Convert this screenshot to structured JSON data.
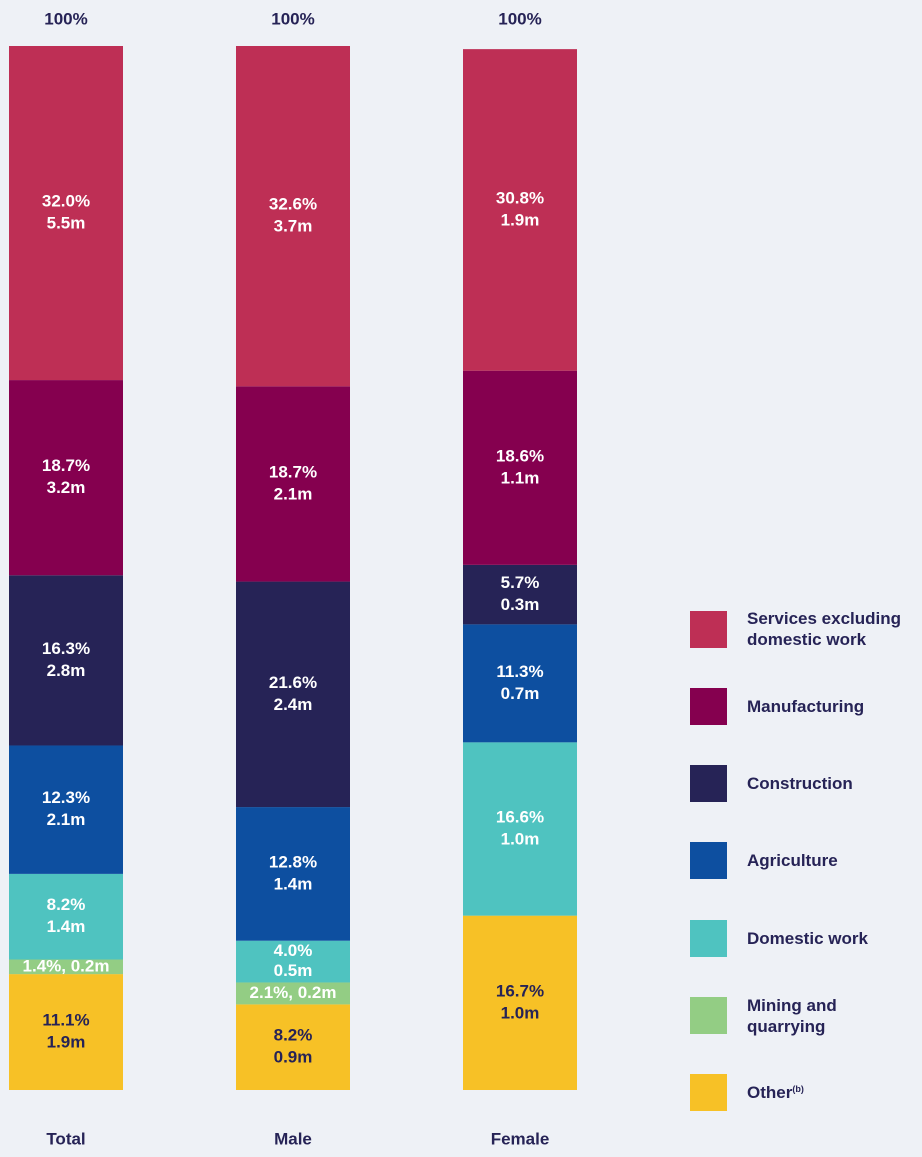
{
  "chart_data": {
    "type": "stacked-bar",
    "categories": [
      "Total",
      "Male",
      "Female"
    ],
    "totals": [
      100,
      100,
      100
    ],
    "total_labels": [
      "100%",
      "100%",
      "100%"
    ],
    "ylim": [
      0,
      100
    ],
    "series": [
      {
        "name": "Other",
        "name_note": "(b)",
        "color": "#f7c126",
        "label_color": "#262356",
        "values": [
          11.1,
          8.2,
          16.7
        ],
        "value_labels": [
          "11.1%",
          "8.2%",
          "16.7%"
        ],
        "counts": [
          1.9,
          0.9,
          1.0
        ],
        "count_labels": [
          "1.9m",
          "0.9m",
          "1.0m"
        ]
      },
      {
        "name": "Mining and quarrying",
        "color": "#93cd84",
        "label_color": "#ffffff",
        "values": [
          1.4,
          2.1,
          null
        ],
        "value_labels": [
          "1.4%, 0.2m",
          "2.1%, 0.2m",
          null
        ],
        "counts": [
          0.2,
          0.2,
          null
        ],
        "count_labels": [
          null,
          null,
          null
        ]
      },
      {
        "name": "Domestic work",
        "color": "#4fc3c0",
        "label_color": "#ffffff",
        "values": [
          8.2,
          4.0,
          16.6
        ],
        "value_labels": [
          "8.2%",
          "4.0%",
          "16.6%"
        ],
        "counts": [
          1.4,
          0.5,
          1.0
        ],
        "count_labels": [
          "1.4m",
          "0.5m",
          "1.0m"
        ]
      },
      {
        "name": "Agriculture",
        "color": "#0d4fa0",
        "label_color": "#ffffff",
        "values": [
          12.3,
          12.8,
          11.3
        ],
        "value_labels": [
          "12.3%",
          "12.8%",
          "11.3%"
        ],
        "counts": [
          2.1,
          1.4,
          0.7
        ],
        "count_labels": [
          "2.1m",
          "1.4m",
          "0.7m"
        ]
      },
      {
        "name": "Construction",
        "color": "#262356",
        "label_color": "#ffffff",
        "values": [
          16.3,
          21.6,
          5.7
        ],
        "value_labels": [
          "16.3%",
          "21.6%",
          "5.7%"
        ],
        "counts": [
          2.8,
          2.4,
          0.3
        ],
        "count_labels": [
          "2.8m",
          "2.4m",
          "0.3m"
        ]
      },
      {
        "name": "Manufacturing",
        "color": "#85004f",
        "label_color": "#ffffff",
        "values": [
          18.7,
          18.7,
          18.6
        ],
        "value_labels": [
          "18.7%",
          "18.7%",
          "18.6%"
        ],
        "counts": [
          3.2,
          2.1,
          1.1
        ],
        "count_labels": [
          "3.2m",
          "2.1m",
          "1.1m"
        ]
      },
      {
        "name": "Services excluding domestic work",
        "color": "#be2f55",
        "label_color": "#ffffff",
        "values": [
          32.0,
          32.6,
          30.8
        ],
        "value_labels": [
          "32.0%",
          "32.6%",
          "30.8%"
        ],
        "counts": [
          5.5,
          3.7,
          1.9
        ],
        "count_labels": [
          "5.5m",
          "3.7m",
          "1.9m"
        ]
      }
    ]
  }
}
